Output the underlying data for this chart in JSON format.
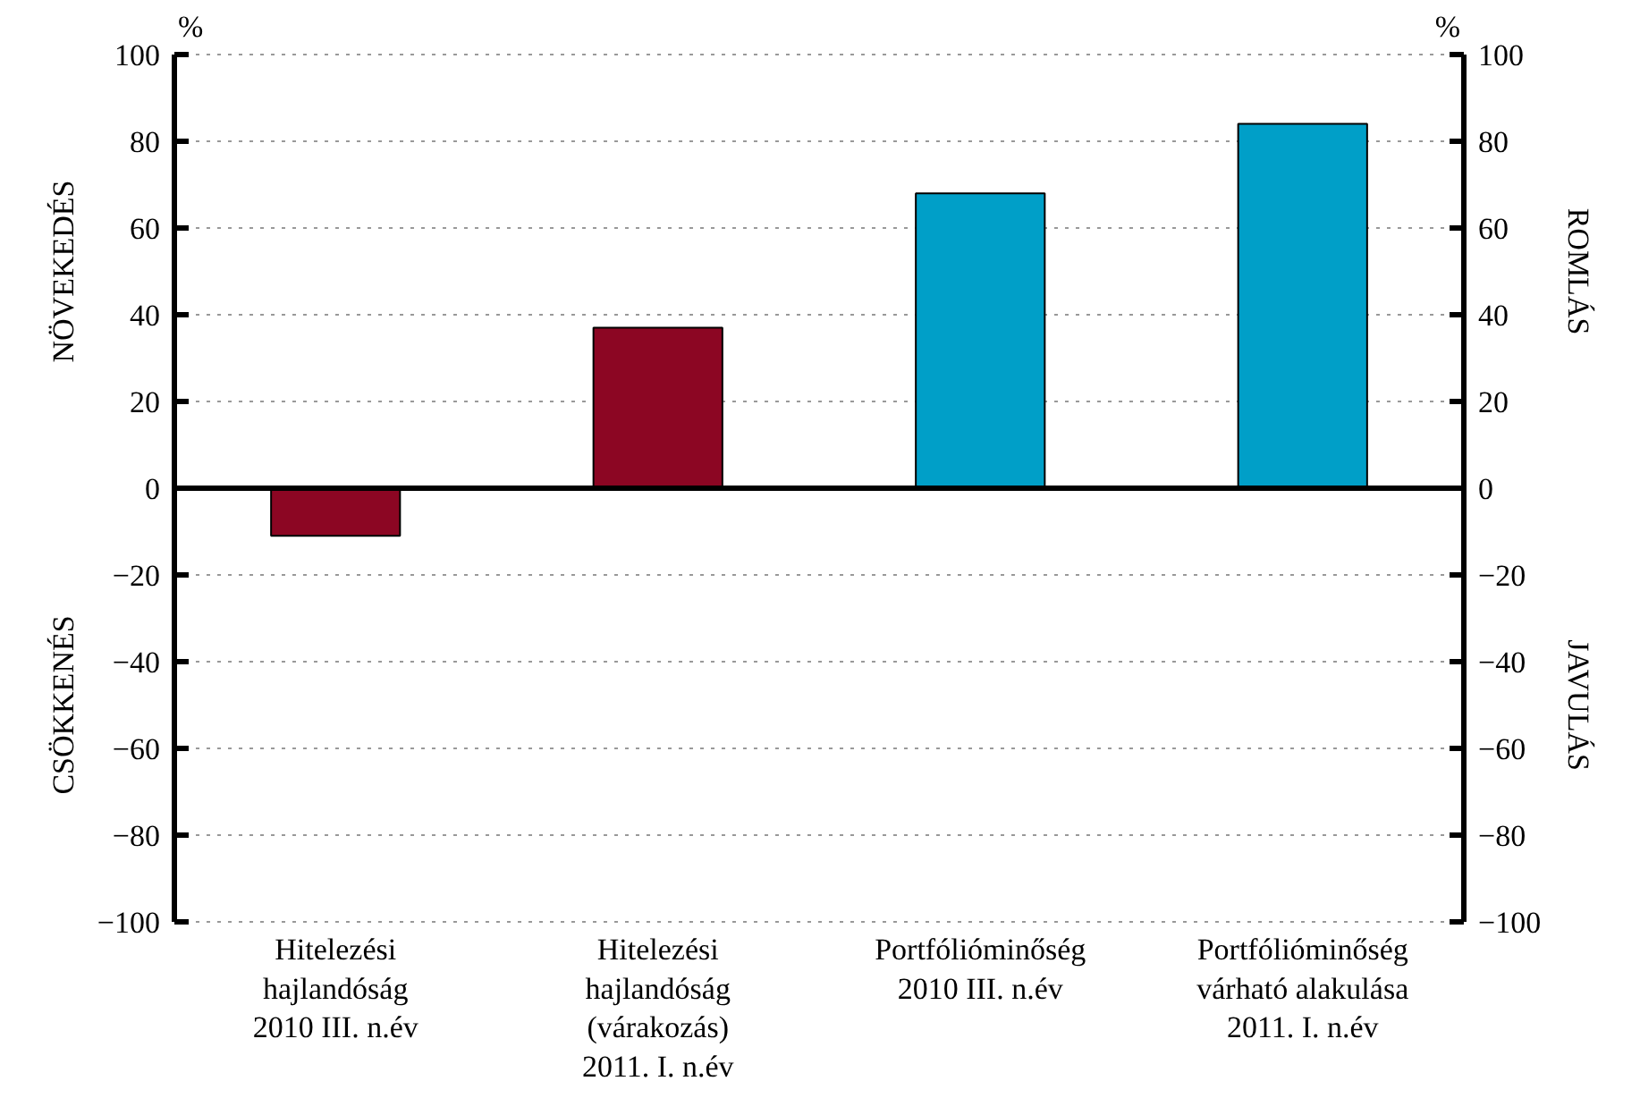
{
  "chart_data": {
    "type": "bar",
    "categories": [
      "Hitelezési\nhajlandóság\n2010 III. n.év",
      "Hitelezési\nhajlandóság\n(várakozás)\n2011. I. n.év",
      "Portfólióminőség\n2010 III. n.év",
      "Portfólióminőség\nvárható alakulása\n2011. I. n.év"
    ],
    "values": [
      -11,
      37,
      68,
      84
    ],
    "colors": [
      "#8c0623",
      "#8c0623",
      "#009fc8",
      "#009fc8"
    ],
    "ylabel": "%",
    "y2label": "%",
    "ylim": [
      -100,
      100
    ],
    "yticks": [
      {
        "value": -100,
        "label": "−100"
      },
      {
        "value": -80,
        "label": "−80"
      },
      {
        "value": -60,
        "label": "−60"
      },
      {
        "value": -40,
        "label": "−40"
      },
      {
        "value": -20,
        "label": "−20"
      },
      0,
      20,
      40,
      60,
      80,
      100
    ],
    "y2lim": [
      -100,
      100
    ],
    "y2ticks": [
      {
        "value": -100,
        "label": "−100"
      },
      {
        "value": -80,
        "label": "−80"
      },
      {
        "value": -60,
        "label": "−60"
      },
      {
        "value": -40,
        "label": "−40"
      },
      {
        "value": -20,
        "label": "−20"
      },
      0,
      20,
      40,
      60,
      80,
      100
    ],
    "annotations": [
      "NÖVEKEDÉS",
      "CSÖKKENÉS",
      "ROMLÁS",
      "JAVULÁS"
    ],
    "grid": "y"
  }
}
